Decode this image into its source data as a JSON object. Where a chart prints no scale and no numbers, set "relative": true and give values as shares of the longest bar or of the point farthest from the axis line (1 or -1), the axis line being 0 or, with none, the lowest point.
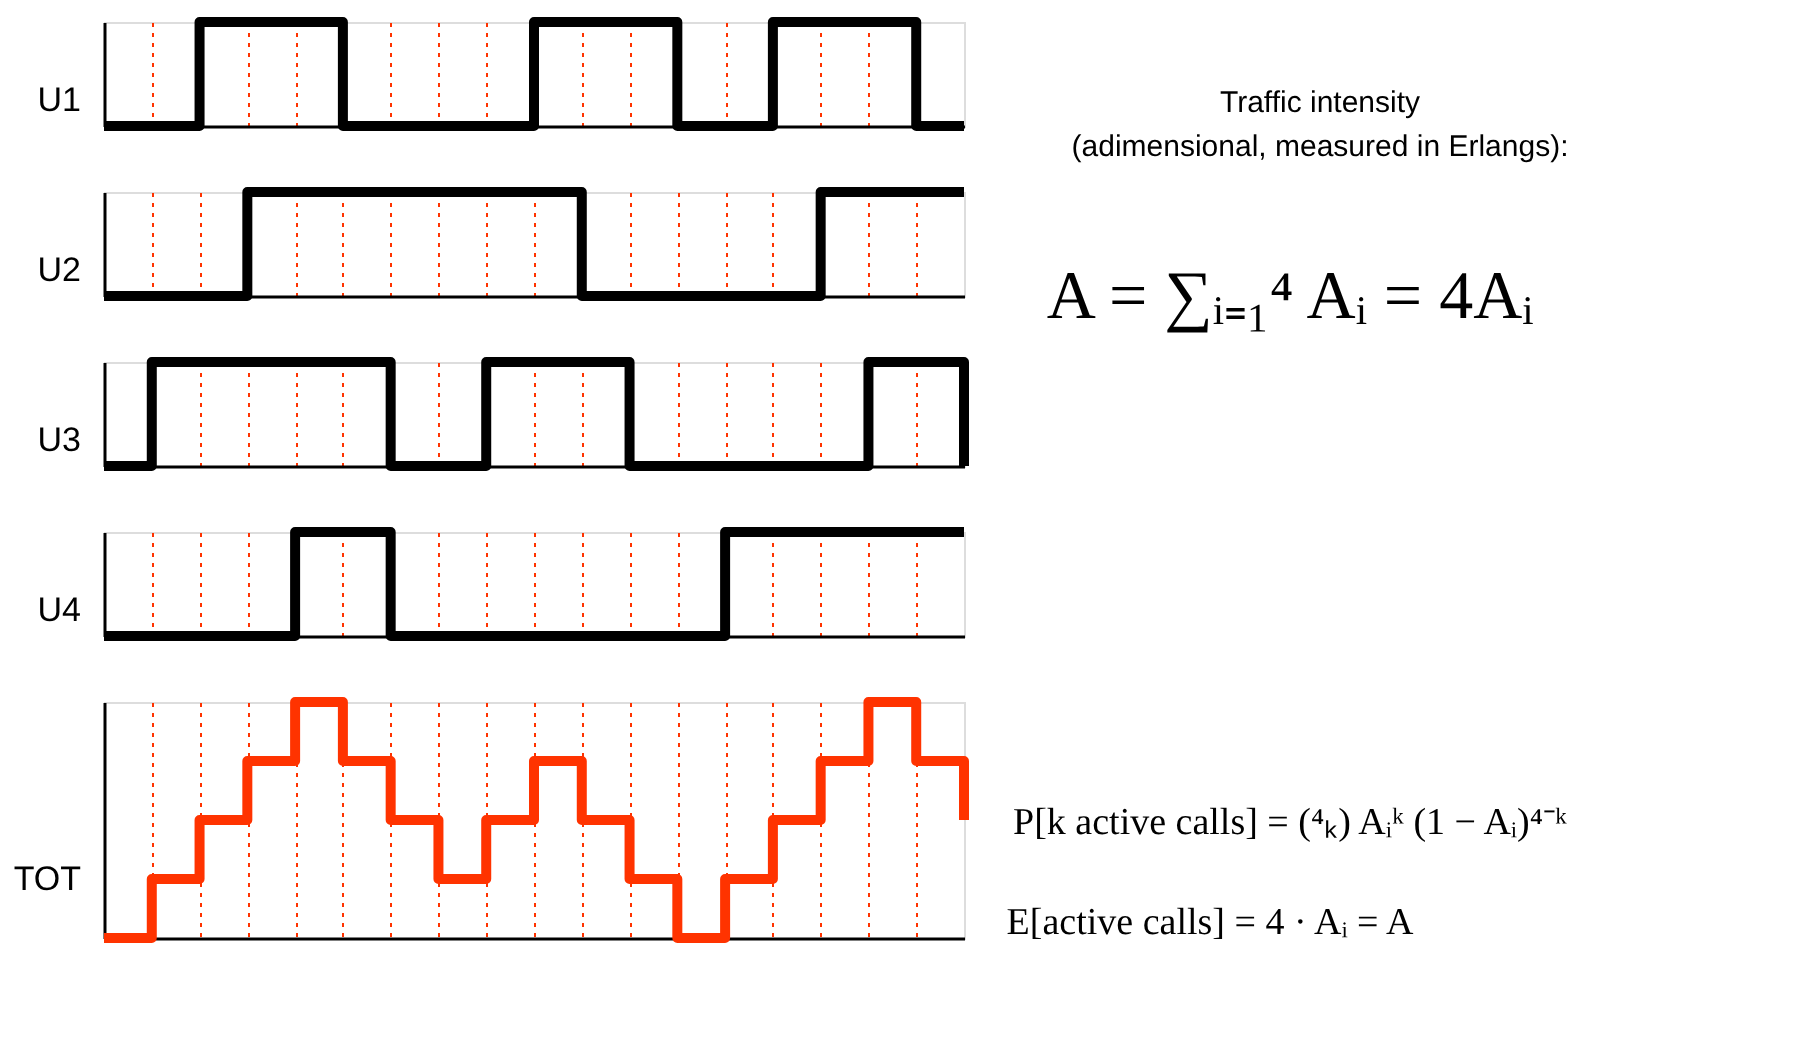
{
  "chart_data": [
    {
      "type": "step",
      "ylabel": "U1",
      "categories": [
        null,
        null,
        null,
        null,
        null,
        null,
        null,
        null,
        null,
        null,
        null,
        null,
        null,
        null,
        null,
        null,
        null,
        null,
        null
      ],
      "values": [
        0,
        0,
        1,
        1,
        1,
        0,
        0,
        0,
        0,
        1,
        1,
        1,
        0,
        0,
        1,
        1,
        1,
        0,
        0
      ],
      "color": "#000000",
      "relative": true,
      "grid": "x",
      "tick_labels": false
    },
    {
      "type": "step",
      "ylabel": "U2",
      "categories": [
        null,
        null,
        null,
        null,
        null,
        null,
        null,
        null,
        null,
        null,
        null,
        null,
        null,
        null,
        null,
        null,
        null,
        null,
        null
      ],
      "values": [
        0,
        0,
        0,
        1,
        1,
        1,
        1,
        1,
        1,
        1,
        0,
        0,
        0,
        0,
        0,
        1,
        1,
        1,
        1
      ],
      "color": "#000000",
      "relative": true,
      "grid": "x",
      "tick_labels": false
    },
    {
      "type": "step",
      "ylabel": "U3",
      "categories": [
        null,
        null,
        null,
        null,
        null,
        null,
        null,
        null,
        null,
        null,
        null,
        null,
        null,
        null,
        null,
        null,
        null,
        null,
        null
      ],
      "values": [
        0,
        1,
        1,
        1,
        1,
        1,
        0,
        0,
        1,
        1,
        1,
        0,
        0,
        0,
        0,
        0,
        1,
        1,
        0
      ],
      "color": "#000000",
      "relative": true,
      "grid": "x",
      "tick_labels": false
    },
    {
      "type": "step",
      "ylabel": "U4",
      "categories": [
        null,
        null,
        null,
        null,
        null,
        null,
        null,
        null,
        null,
        null,
        null,
        null,
        null,
        null,
        null,
        null,
        null,
        null,
        null
      ],
      "values": [
        0,
        0,
        0,
        0,
        1,
        1,
        0,
        0,
        0,
        0,
        0,
        0,
        0,
        1,
        1,
        1,
        1,
        1,
        1
      ],
      "color": "#000000",
      "relative": true,
      "grid": "x",
      "tick_labels": false
    },
    {
      "type": "step",
      "ylabel": "TOT",
      "categories": [
        null,
        null,
        null,
        null,
        null,
        null,
        null,
        null,
        null,
        null,
        null,
        null,
        null,
        null,
        null,
        null,
        null,
        null,
        null
      ],
      "values": [
        0,
        0.25,
        0.5,
        0.75,
        1,
        0.75,
        0.5,
        0.25,
        0.5,
        0.75,
        0.5,
        0.25,
        0,
        0.25,
        0.5,
        0.75,
        1,
        0.75,
        0.5
      ],
      "color": "#ff3300",
      "relative": true,
      "grid": "x",
      "tick_labels": false
    },
    {
      "type": "other",
      "annotations": [
        "Traffic intensity",
        "(adimensional, measured in Erlangs):",
        "A = ∑ᵢ₌₁⁴ Aᵢ = 4Aᵢ",
        "P[k active calls] = (⁴ₖ) Aᵢᵏ (1 − Aᵢ)⁴⁻ᵏ",
        "E[active calls] = 4 · Aᵢ = A"
      ]
    }
  ]
}
